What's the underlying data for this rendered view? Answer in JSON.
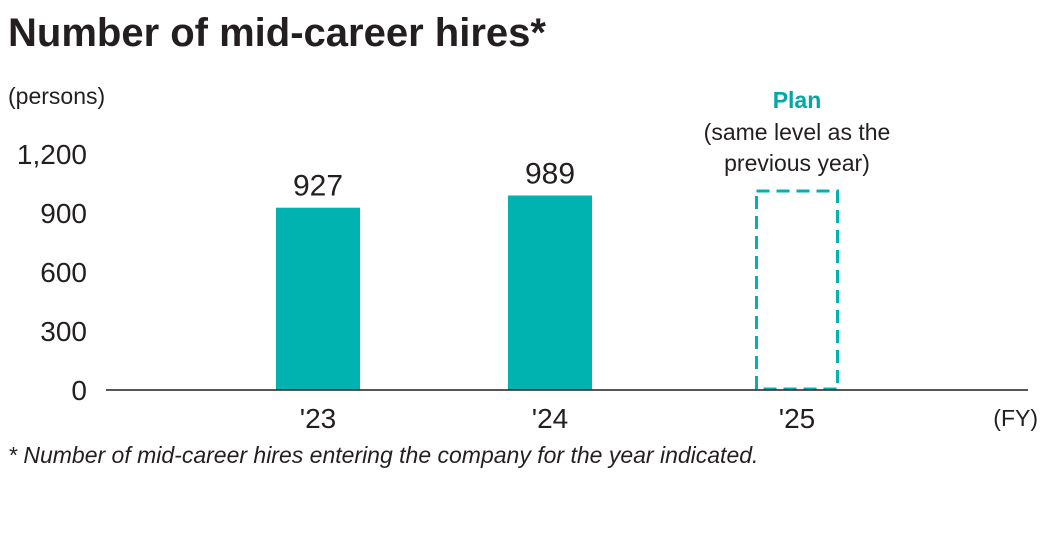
{
  "title": "Number of mid-career hires*",
  "unit_label": "(persons)",
  "fy_label": "(FY)",
  "footnote": "* Number of mid-career hires entering the company for the year indicated.",
  "plan": {
    "title": "Plan",
    "note_line1": "(same level as the",
    "note_line2": "previous year)"
  },
  "colors": {
    "bar": "#00b2b0",
    "plan_text": "#00a9a6",
    "axis": "#231f20",
    "text": "#231f20"
  },
  "chart_data": {
    "type": "bar",
    "title": "Number of mid-career hires*",
    "ylabel": "(persons)",
    "xlabel": "(FY)",
    "categories": [
      "'23",
      "'24",
      "'25"
    ],
    "values": [
      927,
      989,
      1012
    ],
    "value_labels": [
      "927",
      "989",
      ""
    ],
    "planned": [
      false,
      false,
      true
    ],
    "ylim": [
      0,
      1200
    ],
    "yticks": [
      0,
      300,
      600,
      900,
      1200
    ],
    "ytick_labels": [
      "0",
      "300",
      "600",
      "900",
      "1,200"
    ],
    "grid": false,
    "legend": "none"
  }
}
